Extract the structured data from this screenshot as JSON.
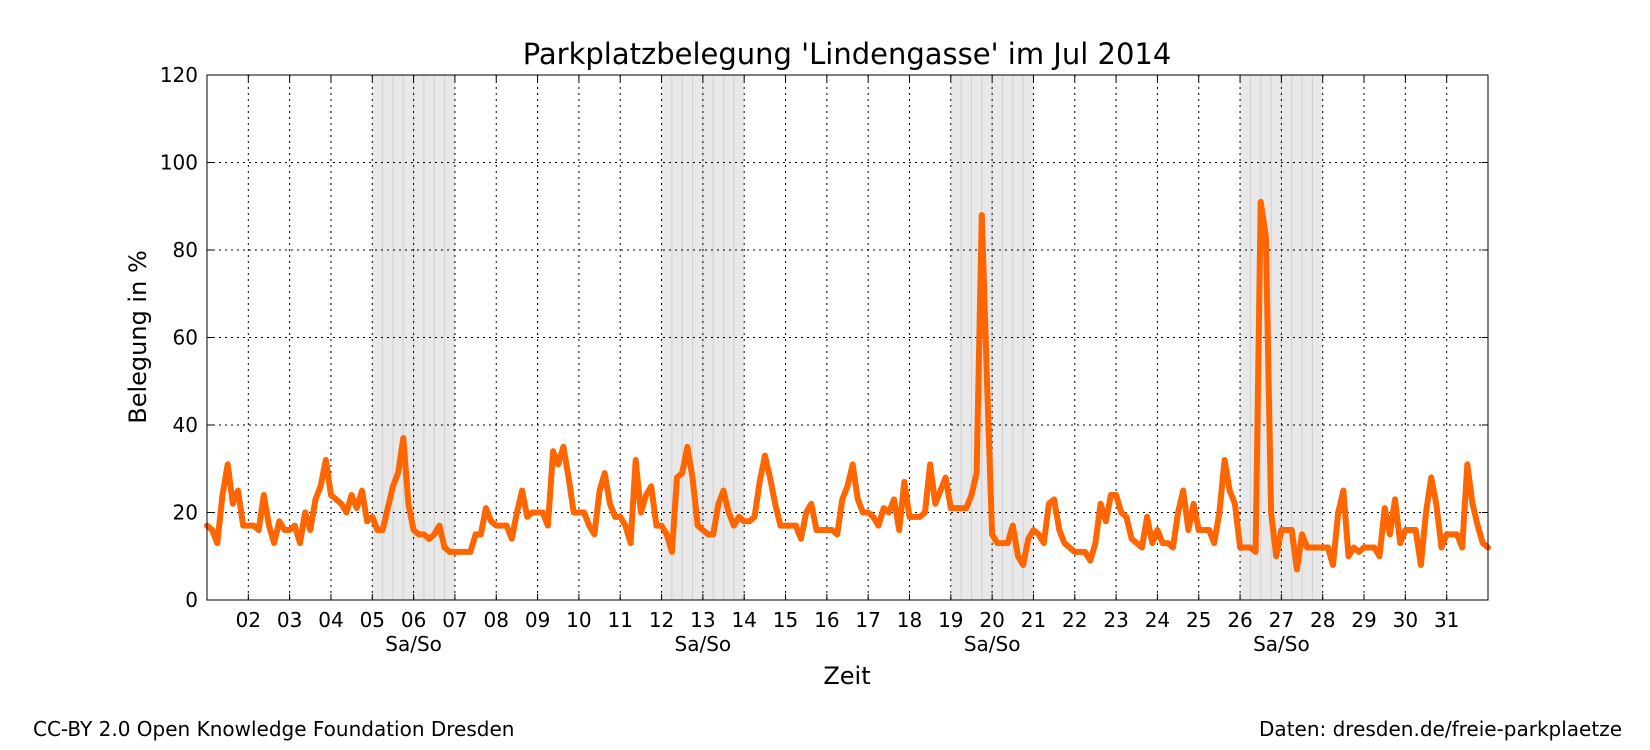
{
  "chart_data": {
    "type": "line",
    "title": "Parkplatzbelegung 'Lindengasse' im Jul 2014",
    "xlabel": "Zeit",
    "ylabel": "Belegung in %",
    "ylim": [
      0,
      120
    ],
    "xlim": [
      "2014-07-01",
      "2014-08-01"
    ],
    "yticks": [
      0,
      20,
      40,
      60,
      80,
      100,
      120
    ],
    "xtick_labels": [
      "02",
      "03",
      "04",
      "05",
      "06",
      "07",
      "08",
      "09",
      "10",
      "11",
      "12",
      "13",
      "14",
      "15",
      "16",
      "17",
      "18",
      "19",
      "20",
      "21",
      "22",
      "23",
      "24",
      "25",
      "26",
      "27",
      "28",
      "29",
      "30",
      "31"
    ],
    "weekend_label": "Sa/So",
    "weekends": [
      [
        "2014-07-05",
        "2014-07-07"
      ],
      [
        "2014-07-12",
        "2014-07-14"
      ],
      [
        "2014-07-19",
        "2014-07-21"
      ],
      [
        "2014-07-26",
        "2014-07-28"
      ]
    ],
    "grid": true,
    "line_color": "#ff6600",
    "weekend_fill": "#e6e6e6",
    "series": [
      {
        "x": [
          "2014-07-01 00:00",
          "2014-07-01 03:00",
          "2014-07-01 06:00",
          "2014-07-01 09:00",
          "2014-07-01 12:00",
          "2014-07-01 15:00",
          "2014-07-01 18:00",
          "2014-07-01 21:00",
          "2014-07-02 00:00",
          "2014-07-02 03:00",
          "2014-07-02 06:00",
          "2014-07-02 09:00",
          "2014-07-02 12:00",
          "2014-07-02 15:00",
          "2014-07-02 18:00",
          "2014-07-02 21:00",
          "2014-07-03 00:00",
          "2014-07-03 03:00",
          "2014-07-03 06:00",
          "2014-07-03 09:00",
          "2014-07-03 12:00",
          "2014-07-03 15:00",
          "2014-07-03 18:00",
          "2014-07-03 21:00",
          "2014-07-04 00:00",
          "2014-07-04 03:00",
          "2014-07-04 06:00",
          "2014-07-04 09:00",
          "2014-07-04 12:00",
          "2014-07-04 15:00",
          "2014-07-04 18:00",
          "2014-07-04 21:00",
          "2014-07-05 00:00",
          "2014-07-05 03:00",
          "2014-07-05 06:00",
          "2014-07-05 09:00",
          "2014-07-05 12:00",
          "2014-07-05 15:00",
          "2014-07-05 18:00",
          "2014-07-05 21:00",
          "2014-07-06 00:00",
          "2014-07-06 03:00",
          "2014-07-06 06:00",
          "2014-07-06 09:00",
          "2014-07-06 12:00",
          "2014-07-06 15:00",
          "2014-07-06 18:00",
          "2014-07-06 21:00",
          "2014-07-07 00:00",
          "2014-07-07 03:00",
          "2014-07-07 06:00",
          "2014-07-07 09:00",
          "2014-07-07 12:00",
          "2014-07-07 15:00",
          "2014-07-07 18:00",
          "2014-07-07 21:00",
          "2014-07-08 00:00",
          "2014-07-08 03:00",
          "2014-07-08 06:00",
          "2014-07-08 09:00",
          "2014-07-08 12:00",
          "2014-07-08 15:00",
          "2014-07-08 18:00",
          "2014-07-08 21:00",
          "2014-07-09 00:00",
          "2014-07-09 03:00",
          "2014-07-09 06:00",
          "2014-07-09 09:00",
          "2014-07-09 12:00",
          "2014-07-09 15:00",
          "2014-07-09 18:00",
          "2014-07-09 21:00",
          "2014-07-10 00:00",
          "2014-07-10 03:00",
          "2014-07-10 06:00",
          "2014-07-10 09:00",
          "2014-07-10 12:00",
          "2014-07-10 15:00",
          "2014-07-10 18:00",
          "2014-07-10 21:00",
          "2014-07-11 00:00",
          "2014-07-11 03:00",
          "2014-07-11 06:00",
          "2014-07-11 09:00",
          "2014-07-11 12:00",
          "2014-07-11 15:00",
          "2014-07-11 18:00",
          "2014-07-11 21:00",
          "2014-07-12 00:00",
          "2014-07-12 03:00",
          "2014-07-12 06:00",
          "2014-07-12 09:00",
          "2014-07-12 12:00",
          "2014-07-12 15:00",
          "2014-07-12 18:00",
          "2014-07-12 21:00",
          "2014-07-13 00:00",
          "2014-07-13 03:00",
          "2014-07-13 06:00",
          "2014-07-13 09:00",
          "2014-07-13 12:00",
          "2014-07-13 15:00",
          "2014-07-13 18:00",
          "2014-07-13 21:00",
          "2014-07-14 00:00",
          "2014-07-14 03:00",
          "2014-07-14 06:00",
          "2014-07-14 09:00",
          "2014-07-14 12:00",
          "2014-07-14 15:00",
          "2014-07-14 18:00",
          "2014-07-14 21:00",
          "2014-07-15 00:00",
          "2014-07-15 03:00",
          "2014-07-15 06:00",
          "2014-07-15 09:00",
          "2014-07-15 12:00",
          "2014-07-15 15:00",
          "2014-07-15 18:00",
          "2014-07-15 21:00",
          "2014-07-16 00:00",
          "2014-07-16 03:00",
          "2014-07-16 06:00",
          "2014-07-16 09:00",
          "2014-07-16 12:00",
          "2014-07-16 15:00",
          "2014-07-16 18:00",
          "2014-07-16 21:00",
          "2014-07-17 00:00",
          "2014-07-17 03:00",
          "2014-07-17 06:00",
          "2014-07-17 09:00",
          "2014-07-17 12:00",
          "2014-07-17 15:00",
          "2014-07-17 18:00",
          "2014-07-17 21:00",
          "2014-07-18 00:00",
          "2014-07-18 03:00",
          "2014-07-18 06:00",
          "2014-07-18 09:00",
          "2014-07-18 12:00",
          "2014-07-18 15:00",
          "2014-07-18 18:00",
          "2014-07-18 21:00",
          "2014-07-19 00:00",
          "2014-07-19 03:00",
          "2014-07-19 06:00",
          "2014-07-19 09:00",
          "2014-07-19 12:00",
          "2014-07-19 15:00",
          "2014-07-19 18:00",
          "2014-07-19 21:00",
          "2014-07-20 00:00",
          "2014-07-20 03:00",
          "2014-07-20 06:00",
          "2014-07-20 09:00",
          "2014-07-20 12:00",
          "2014-07-20 15:00",
          "2014-07-20 18:00",
          "2014-07-20 21:00",
          "2014-07-21 00:00",
          "2014-07-21 03:00",
          "2014-07-21 06:00",
          "2014-07-21 09:00",
          "2014-07-21 12:00",
          "2014-07-21 15:00",
          "2014-07-21 18:00",
          "2014-07-21 21:00",
          "2014-07-22 00:00",
          "2014-07-22 03:00",
          "2014-07-22 06:00",
          "2014-07-22 09:00",
          "2014-07-22 12:00",
          "2014-07-22 15:00",
          "2014-07-22 18:00",
          "2014-07-22 21:00",
          "2014-07-23 00:00",
          "2014-07-23 03:00",
          "2014-07-23 06:00",
          "2014-07-23 09:00",
          "2014-07-23 12:00",
          "2014-07-23 15:00",
          "2014-07-23 18:00",
          "2014-07-23 21:00",
          "2014-07-24 00:00",
          "2014-07-24 03:00",
          "2014-07-24 06:00",
          "2014-07-24 09:00",
          "2014-07-24 12:00",
          "2014-07-24 15:00",
          "2014-07-24 18:00",
          "2014-07-24 21:00",
          "2014-07-25 00:00",
          "2014-07-25 03:00",
          "2014-07-25 06:00",
          "2014-07-25 09:00",
          "2014-07-25 12:00",
          "2014-07-25 15:00",
          "2014-07-25 18:00",
          "2014-07-25 21:00",
          "2014-07-26 00:00",
          "2014-07-26 03:00",
          "2014-07-26 06:00",
          "2014-07-26 09:00",
          "2014-07-26 12:00",
          "2014-07-26 15:00",
          "2014-07-26 18:00",
          "2014-07-26 21:00",
          "2014-07-27 00:00",
          "2014-07-27 03:00",
          "2014-07-27 06:00",
          "2014-07-27 09:00",
          "2014-07-27 12:00",
          "2014-07-27 15:00",
          "2014-07-27 18:00",
          "2014-07-27 21:00",
          "2014-07-28 00:00",
          "2014-07-28 03:00",
          "2014-07-28 06:00",
          "2014-07-28 09:00",
          "2014-07-28 12:00",
          "2014-07-28 15:00",
          "2014-07-28 18:00",
          "2014-07-28 21:00",
          "2014-07-29 00:00",
          "2014-07-29 03:00",
          "2014-07-29 06:00",
          "2014-07-29 09:00",
          "2014-07-29 12:00",
          "2014-07-29 15:00",
          "2014-07-29 18:00",
          "2014-07-29 21:00",
          "2014-07-30 00:00",
          "2014-07-30 03:00",
          "2014-07-30 06:00",
          "2014-07-30 09:00",
          "2014-07-30 12:00",
          "2014-07-30 15:00",
          "2014-07-30 18:00",
          "2014-07-30 21:00",
          "2014-07-31 00:00",
          "2014-07-31 03:00",
          "2014-07-31 06:00",
          "2014-07-31 09:00",
          "2014-07-31 12:00",
          "2014-07-31 15:00",
          "2014-07-31 18:00",
          "2014-07-31 21:00",
          "2014-08-01 00:00"
        ],
        "values": [
          17,
          16,
          13,
          24,
          31,
          22,
          25,
          17,
          17,
          17,
          16,
          24,
          17,
          13,
          18,
          16,
          16,
          17,
          13,
          20,
          16,
          23,
          26,
          32,
          24,
          23,
          22,
          20,
          24,
          21,
          25,
          18,
          19,
          16,
          16,
          21,
          26,
          29,
          37,
          22,
          16,
          15,
          15,
          14,
          15,
          17,
          12,
          11,
          11,
          11,
          11,
          11,
          15,
          15,
          21,
          18,
          17,
          17,
          17,
          14,
          20,
          25,
          19,
          20,
          20,
          20,
          17,
          34,
          31,
          35,
          28,
          20,
          20,
          20,
          17,
          15,
          25,
          29,
          22,
          19,
          19,
          17,
          13,
          32,
          20,
          24,
          26,
          17,
          17,
          15,
          11,
          28,
          29,
          35,
          28,
          17,
          16,
          15,
          15,
          22,
          25,
          20,
          17,
          19,
          18,
          18,
          19,
          27,
          33,
          28,
          22,
          17,
          17,
          17,
          17,
          14,
          20,
          22,
          16,
          16,
          16,
          16,
          15,
          23,
          26,
          31,
          23,
          20,
          20,
          19,
          17,
          21,
          20,
          23,
          16,
          27,
          19,
          19,
          19,
          20,
          31,
          22,
          25,
          28,
          21,
          21,
          21,
          21,
          24,
          29,
          88,
          50,
          15,
          13,
          13,
          13,
          17,
          10,
          8,
          14,
          16,
          15,
          13,
          22,
          23,
          16,
          13,
          12,
          11,
          11,
          11,
          9,
          13,
          22,
          18,
          24,
          24,
          20,
          19,
          14,
          13,
          12,
          19,
          13,
          16,
          13,
          13,
          12,
          20,
          25,
          16,
          22,
          16,
          16,
          16,
          13,
          20,
          32,
          25,
          22,
          12,
          12,
          12,
          11,
          91,
          83,
          20,
          10,
          16,
          16,
          16,
          7,
          15,
          12,
          12,
          12,
          12,
          12,
          8,
          20,
          25,
          10,
          12,
          11,
          12,
          12,
          12,
          10,
          21,
          15,
          23,
          13,
          16,
          16,
          16,
          8,
          20,
          28,
          22,
          12,
          15,
          15,
          15,
          12,
          31,
          22,
          17,
          13,
          12
        ]
      }
    ]
  },
  "footer": {
    "left": "CC-BY 2.0 Open Knowledge Foundation Dresden",
    "right": "Daten: dresden.de/freie-parkplaetze"
  }
}
